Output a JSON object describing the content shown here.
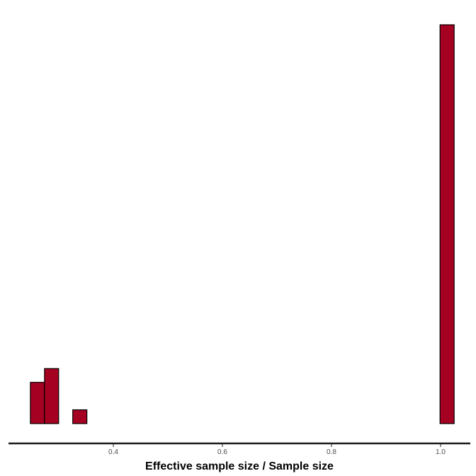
{
  "chart_data": {
    "type": "bar",
    "subtype": "histogram",
    "title": "",
    "xlabel": "Effective sample size / Sample size",
    "ylabel": "",
    "xlim": [
      0.22,
      1.05
    ],
    "ylim": [
      0,
      30
    ],
    "x_ticks": [
      0.4,
      0.6,
      0.8,
      1.0
    ],
    "x_tick_labels": [
      "0.4",
      "0.6",
      "0.8",
      "1.0"
    ],
    "y_axis_visible": false,
    "grid": false,
    "legend": "none",
    "bin_width": 0.0259,
    "bins": [
      {
        "x_start": 0.2479,
        "x_end": 0.2738,
        "count": 3
      },
      {
        "x_start": 0.2738,
        "x_end": 0.2997,
        "count": 4
      },
      {
        "x_start": 0.2997,
        "x_end": 0.3256,
        "count": 0
      },
      {
        "x_start": 0.3256,
        "x_end": 0.3515,
        "count": 1
      },
      {
        "x_start": 0.3515,
        "x_end": 0.3774,
        "count": 0
      },
      {
        "x_start": 0.3774,
        "x_end": 0.4033,
        "count": 0
      },
      {
        "x_start": 0.4033,
        "x_end": 0.4292,
        "count": 0
      },
      {
        "x_start": 0.4292,
        "x_end": 0.4551,
        "count": 0
      },
      {
        "x_start": 0.4551,
        "x_end": 0.481,
        "count": 0
      },
      {
        "x_start": 0.481,
        "x_end": 0.5069,
        "count": 0
      },
      {
        "x_start": 0.5069,
        "x_end": 0.5328,
        "count": 0
      },
      {
        "x_start": 0.5328,
        "x_end": 0.5587,
        "count": 0
      },
      {
        "x_start": 0.5587,
        "x_end": 0.5846,
        "count": 0
      },
      {
        "x_start": 0.5846,
        "x_end": 0.6105,
        "count": 0
      },
      {
        "x_start": 0.6105,
        "x_end": 0.6364,
        "count": 0
      },
      {
        "x_start": 0.6364,
        "x_end": 0.6623,
        "count": 0
      },
      {
        "x_start": 0.6623,
        "x_end": 0.6882,
        "count": 0
      },
      {
        "x_start": 0.6882,
        "x_end": 0.7141,
        "count": 0
      },
      {
        "x_start": 0.7141,
        "x_end": 0.74,
        "count": 0
      },
      {
        "x_start": 0.74,
        "x_end": 0.7659,
        "count": 0
      },
      {
        "x_start": 0.7659,
        "x_end": 0.7918,
        "count": 0
      },
      {
        "x_start": 0.7918,
        "x_end": 0.8177,
        "count": 0
      },
      {
        "x_start": 0.8177,
        "x_end": 0.8436,
        "count": 0
      },
      {
        "x_start": 0.8436,
        "x_end": 0.8695,
        "count": 0
      },
      {
        "x_start": 0.8695,
        "x_end": 0.8954,
        "count": 0
      },
      {
        "x_start": 0.8954,
        "x_end": 0.9213,
        "count": 0
      },
      {
        "x_start": 0.9213,
        "x_end": 0.9472,
        "count": 0
      },
      {
        "x_start": 0.9472,
        "x_end": 0.9731,
        "count": 0
      },
      {
        "x_start": 0.9731,
        "x_end": 0.999,
        "count": 0
      },
      {
        "x_start": 0.999,
        "x_end": 1.0249,
        "count": 29
      }
    ],
    "colors": {
      "bar_fill": "#a50021",
      "bar_stroke": "#000000",
      "axis_line": "#1a1a1a",
      "tick_label": "#4d4d4d"
    }
  }
}
